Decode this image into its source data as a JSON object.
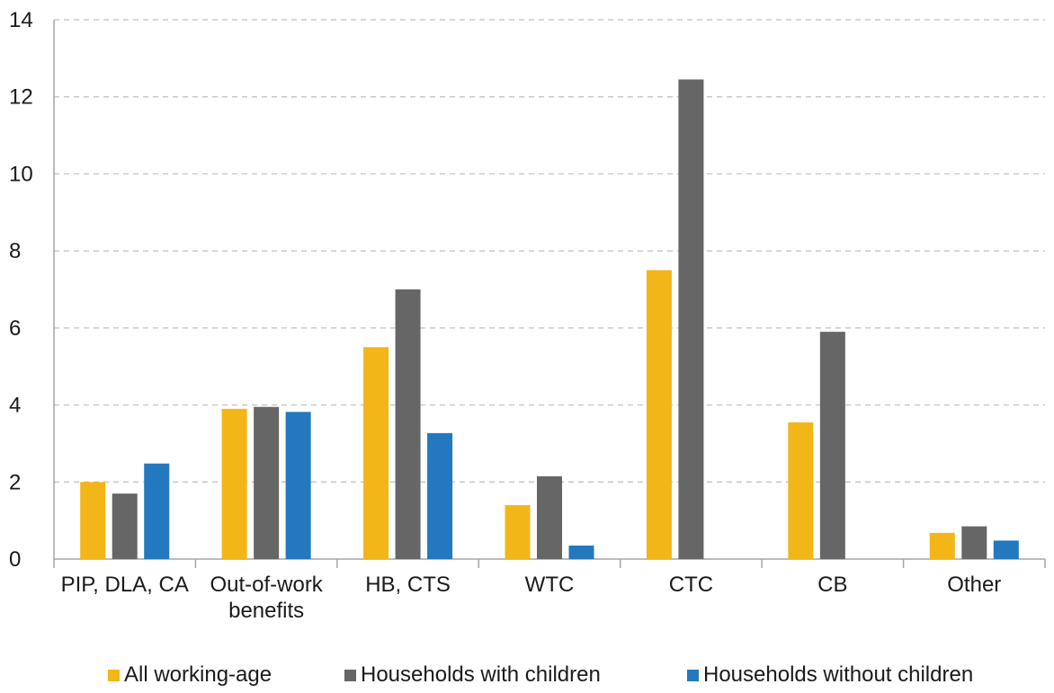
{
  "chart_data": {
    "type": "bar",
    "title": "",
    "xlabel": "",
    "ylabel": "",
    "ylim": [
      0,
      14
    ],
    "yticks": [
      0,
      2,
      4,
      6,
      8,
      10,
      12,
      14
    ],
    "grid": true,
    "legend_position": "bottom",
    "categories": [
      [
        "PIP, DLA, CA"
      ],
      [
        "Out-of-work",
        "benefits"
      ],
      [
        "HB, CTS"
      ],
      [
        "WTC"
      ],
      [
        "CTC"
      ],
      [
        "CB"
      ],
      [
        "Other"
      ]
    ],
    "series": [
      {
        "name": "All working-age",
        "color": "#f2b619",
        "values": [
          2.0,
          3.9,
          5.5,
          1.4,
          7.5,
          3.55,
          0.68
        ]
      },
      {
        "name": "Households with children",
        "color": "#666666",
        "values": [
          1.7,
          3.95,
          7.0,
          2.15,
          12.45,
          5.9,
          0.85
        ]
      },
      {
        "name": "Households without children",
        "color": "#2378be",
        "values": [
          2.48,
          3.82,
          3.27,
          0.35,
          0,
          0,
          0.48
        ]
      }
    ]
  }
}
